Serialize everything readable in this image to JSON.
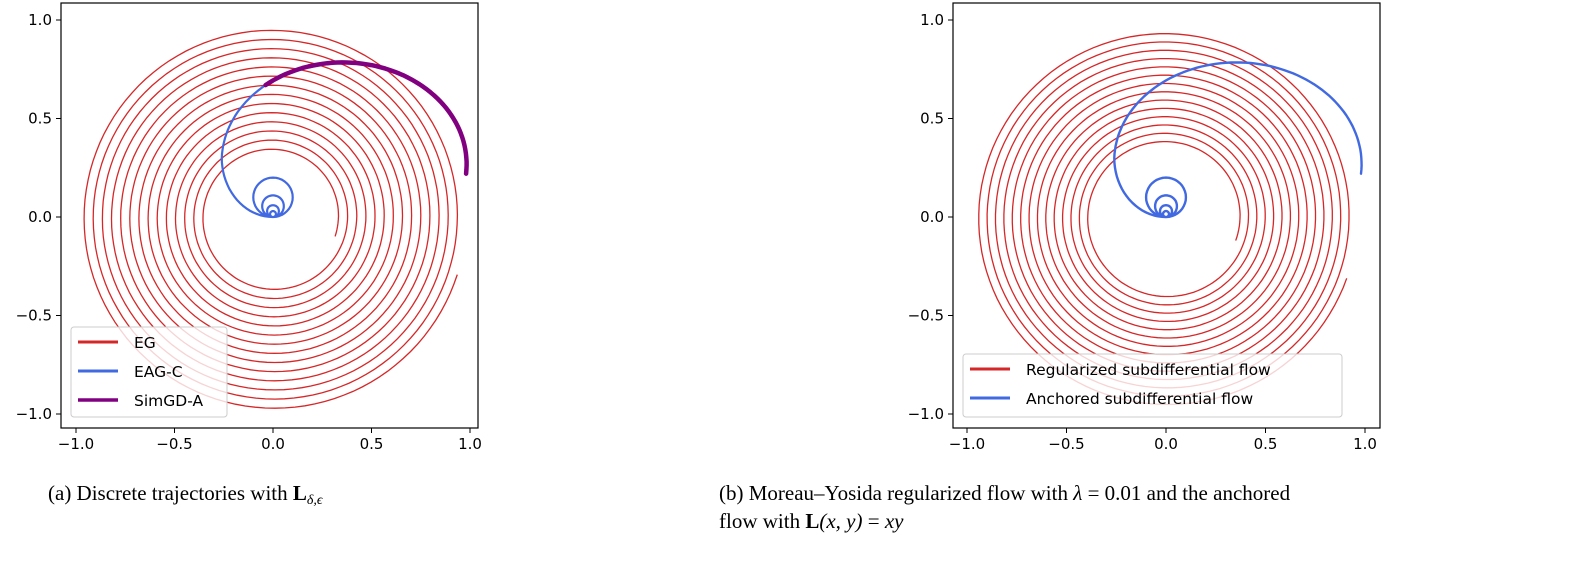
{
  "chart_data": [
    {
      "type": "line",
      "id": "a",
      "title": "",
      "xlabel": "",
      "ylabel": "",
      "xlim": [
        -1.05,
        1.05
      ],
      "ylim": [
        -1.08,
        1.05
      ],
      "xticks": [
        "−1.0",
        "−0.5",
        "0.0",
        "0.5",
        "1.0"
      ],
      "yticks": [
        "1.0",
        "0.5",
        "0.0",
        "−0.5",
        "−1.0"
      ],
      "xtick_values": [
        -1.0,
        -0.5,
        0.0,
        0.5,
        1.0
      ],
      "ytick_values": [
        1.0,
        0.5,
        0.0,
        -0.5,
        -1.0
      ],
      "grid": false,
      "legend_position": "lower left",
      "series": [
        {
          "name": "EG",
          "color": "#d62728",
          "description": "outward spiral from (0.32,-0.1) to radius ~0.98, ~14 turns, counterclockwise",
          "start": [
            0.32,
            -0.1
          ],
          "end_radius": 0.98,
          "turns": 14
        },
        {
          "name": "EAG-C",
          "color": "#4169e1",
          "description": "from (0.98,0.22) arcing over top to (-0.26,0.3), then converging into small loops near origin (0,0.03)",
          "start": [
            0.98,
            0.22
          ],
          "end": [
            0.0,
            0.03
          ]
        },
        {
          "name": "SimGD-A",
          "color": "#800080",
          "description": "thick arc from (0.98,0.22) to (-0.05,0.70), peak ~0.79 at x~0.3",
          "start": [
            0.98,
            0.22
          ],
          "end": [
            -0.05,
            0.7
          ]
        }
      ]
    },
    {
      "type": "line",
      "id": "b",
      "title": "",
      "xlabel": "",
      "ylabel": "",
      "xlim": [
        -1.07,
        1.07
      ],
      "ylim": [
        -1.08,
        1.05
      ],
      "xticks": [
        "−1.0",
        "−0.5",
        "0.0",
        "0.5",
        "1.0"
      ],
      "yticks": [
        "1.0",
        "0.5",
        "0.0",
        "−0.5",
        "−1.0"
      ],
      "xtick_values": [
        -1.0,
        -0.5,
        0.0,
        0.5,
        1.0
      ],
      "ytick_values": [
        1.0,
        0.5,
        0.0,
        -0.5,
        -1.0
      ],
      "grid": false,
      "legend_position": "lower center",
      "series": [
        {
          "name": "Regularized subdifferential flow",
          "color": "#d62728",
          "description": "outward spiral from (0.35,-0.12) to radius ~0.96, ~14 turns",
          "start": [
            0.35,
            -0.12
          ],
          "end_radius": 0.96,
          "turns": 14
        },
        {
          "name": "Anchored subdifferential flow",
          "color": "#4169e1",
          "description": "from (0.98,0.22) arcing over top (peak ~0.79) to (-0.28,0.3), converging into small loops near origin",
          "start": [
            0.98,
            0.22
          ],
          "end": [
            -0.02,
            0.03
          ]
        }
      ]
    }
  ],
  "captions": {
    "a": {
      "prefix": "(a)  Discrete trajectories with ",
      "math_bold": "L",
      "math_sub": "δ,ϵ"
    },
    "b": {
      "line1_prefix": "(b)  Moreau–Yosida regularized flow with ",
      "lambda": "λ",
      "eq": " = 0.01 and the anchored",
      "line2_prefix": "flow with ",
      "math_bold": "L",
      "math_args": "(x, y)",
      "math_eq": " = ",
      "math_rhs": "xy"
    }
  }
}
